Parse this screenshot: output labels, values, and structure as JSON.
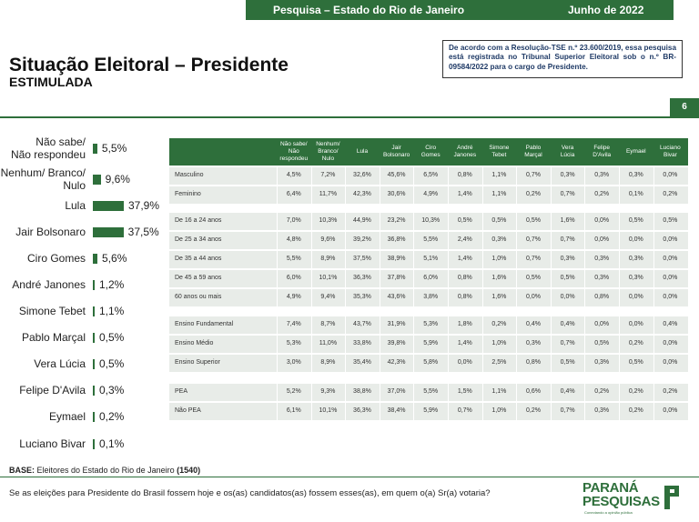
{
  "header": {
    "left": "Pesquisa – Estado do Rio de Janeiro",
    "right": "Junho de 2022"
  },
  "title": "Situação Eleitoral – Presidente",
  "subtitle": "ESTIMULADA",
  "notice": "De acordo com a Resolução-TSE n.º 23.600/2019, essa pesquisa está registrada no Tribunal Superior Eleitoral sob o n.º BR-09584/2022 para o cargo de Presidente.",
  "page_number": "6",
  "chart_data": {
    "type": "bar",
    "orientation": "horizontal",
    "categories": [
      "Não sabe/ Não respondeu",
      "Nenhum/ Branco/ Nulo",
      "Lula",
      "Jair Bolsonaro",
      "Ciro Gomes",
      "André Janones",
      "Simone Tebet",
      "Pablo Marçal",
      "Vera Lúcia",
      "Felipe D'Avila",
      "Eymael",
      "Luciano Bivar"
    ],
    "label_lines": [
      [
        "Não sabe/",
        "Não respondeu"
      ],
      [
        "Nenhum/ Branco/",
        "Nulo"
      ],
      [
        "Lula"
      ],
      [
        "Jair Bolsonaro"
      ],
      [
        "Ciro Gomes"
      ],
      [
        "André Janones"
      ],
      [
        "Simone Tebet"
      ],
      [
        "Pablo Marçal"
      ],
      [
        "Vera Lúcia"
      ],
      [
        "Felipe D'Avila"
      ],
      [
        "Eymael"
      ],
      [
        "Luciano Bivar"
      ]
    ],
    "values": [
      5.5,
      9.6,
      37.9,
      37.5,
      5.6,
      1.2,
      1.1,
      0.5,
      0.5,
      0.3,
      0.2,
      0.1
    ],
    "value_labels": [
      "5,5%",
      "9,6%",
      "37,9%",
      "37,5%",
      "5,6%",
      "1,2%",
      "1,1%",
      "0,5%",
      "0,5%",
      "0,3%",
      "0,2%",
      "0,1%"
    ],
    "bar_color": "#2e6f3b"
  },
  "table": {
    "columns": [
      "Não sabe/ Não respondeu",
      "Nenhum/ Branco/ Nulo",
      "Lula",
      "Jair Bolsonaro",
      "Ciro Gomes",
      "André Janones",
      "Simone Tebet",
      "Pablo Marçal",
      "Vera Lúcia",
      "Felipe D'Avila",
      "Eymael",
      "Luciano Bivar"
    ],
    "column_lines": [
      [
        "Não sabe/",
        "Não",
        "respondeu"
      ],
      [
        "Nenhum/",
        "Branco/",
        "Nulo"
      ],
      [
        "Lula"
      ],
      [
        "Jair",
        "Bolsonaro"
      ],
      [
        "Ciro",
        "Gomes"
      ],
      [
        "André",
        "Janones"
      ],
      [
        "Simone",
        "Tebet"
      ],
      [
        "Pablo",
        "Marçal"
      ],
      [
        "Vera",
        "Lúcia"
      ],
      [
        "Felipe",
        "D'Avila"
      ],
      [
        "Eymael"
      ],
      [
        "Luciano",
        "Bivar"
      ]
    ],
    "groups": [
      {
        "rows": [
          {
            "label": "Masculino",
            "values": [
              "4,5%",
              "7,2%",
              "32,6%",
              "45,6%",
              "6,5%",
              "0,8%",
              "1,1%",
              "0,7%",
              "0,3%",
              "0,3%",
              "0,3%",
              "0,0%"
            ]
          },
          {
            "label": "Feminino",
            "values": [
              "6,4%",
              "11,7%",
              "42,3%",
              "30,6%",
              "4,9%",
              "1,4%",
              "1,1%",
              "0,2%",
              "0,7%",
              "0,2%",
              "0,1%",
              "0,2%"
            ]
          }
        ]
      },
      {
        "rows": [
          {
            "label": "De 16 a 24 anos",
            "values": [
              "7,0%",
              "10,3%",
              "44,9%",
              "23,2%",
              "10,3%",
              "0,5%",
              "0,5%",
              "0,5%",
              "1,6%",
              "0,0%",
              "0,5%",
              "0,5%"
            ]
          },
          {
            "label": "De 25 a 34 anos",
            "values": [
              "4,8%",
              "9,6%",
              "39,2%",
              "36,8%",
              "5,5%",
              "2,4%",
              "0,3%",
              "0,7%",
              "0,7%",
              "0,0%",
              "0,0%",
              "0,0%"
            ]
          },
          {
            "label": "De 35 a 44 anos",
            "values": [
              "5,5%",
              "8,9%",
              "37,5%",
              "38,9%",
              "5,1%",
              "1,4%",
              "1,0%",
              "0,7%",
              "0,3%",
              "0,3%",
              "0,3%",
              "0,0%"
            ]
          },
          {
            "label": "De 45 a 59 anos",
            "values": [
              "6,0%",
              "10,1%",
              "36,3%",
              "37,8%",
              "6,0%",
              "0,8%",
              "1,6%",
              "0,5%",
              "0,5%",
              "0,3%",
              "0,3%",
              "0,0%"
            ]
          },
          {
            "label": "60 anos ou mais",
            "values": [
              "4,9%",
              "9,4%",
              "35,3%",
              "43,6%",
              "3,8%",
              "0,8%",
              "1,6%",
              "0,0%",
              "0,0%",
              "0,8%",
              "0,0%",
              "0,0%"
            ]
          }
        ]
      },
      {
        "rows": [
          {
            "label": "Ensino Fundamental",
            "values": [
              "7,4%",
              "8,7%",
              "43,7%",
              "31,9%",
              "5,3%",
              "1,8%",
              "0,2%",
              "0,4%",
              "0,4%",
              "0,0%",
              "0,0%",
              "0,4%"
            ]
          },
          {
            "label": "Ensino Médio",
            "values": [
              "5,3%",
              "11,0%",
              "33,8%",
              "39,8%",
              "5,9%",
              "1,4%",
              "1,0%",
              "0,3%",
              "0,7%",
              "0,5%",
              "0,2%",
              "0,0%"
            ]
          },
          {
            "label": "Ensino Superior",
            "values": [
              "3,0%",
              "8,9%",
              "35,4%",
              "42,3%",
              "5,8%",
              "0,0%",
              "2,5%",
              "0,8%",
              "0,5%",
              "0,3%",
              "0,5%",
              "0,0%"
            ]
          }
        ]
      },
      {
        "rows": [
          {
            "label": "PEA",
            "values": [
              "5,2%",
              "9,3%",
              "38,8%",
              "37,0%",
              "5,5%",
              "1,5%",
              "1,1%",
              "0,6%",
              "0,4%",
              "0,2%",
              "0,2%",
              "0,2%"
            ]
          },
          {
            "label": "Não PEA",
            "values": [
              "6,1%",
              "10,1%",
              "36,3%",
              "38,4%",
              "5,9%",
              "0,7%",
              "1,0%",
              "0,2%",
              "0,7%",
              "0,3%",
              "0,2%",
              "0,0%"
            ]
          }
        ]
      }
    ]
  },
  "base": {
    "label": "BASE:",
    "text": " Eleitores do Estado do Rio de Janeiro ",
    "count": "(1540)"
  },
  "question": "Se as eleições para Presidente do Brasil fossem hoje e os(as) candidatos(as) fossem esses(as), em quem o(a) Sr(a) votaria?",
  "logo": {
    "line1": "PARANÁ",
    "line2": "PESQUISAS",
    "tagline": "Conectando a opinião pública",
    "color": "#2e6f3b"
  }
}
